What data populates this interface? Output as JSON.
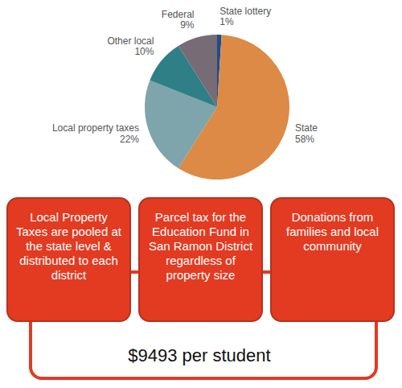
{
  "chart_data": {
    "type": "pie",
    "categories": [
      "State lottery",
      "State",
      "Local property taxes",
      "Other local",
      "Federal"
    ],
    "values": [
      1,
      58,
      22,
      10,
      9
    ],
    "value_labels": [
      "1%",
      "58%",
      "22%",
      "10%",
      "9%"
    ],
    "colors": [
      "#1d4e89",
      "#dc8a46",
      "#7ea5ab",
      "#2f7f86",
      "#776b75"
    ]
  },
  "boxes": [
    "Local Property Taxes are pooled at the state level & distributed to each district",
    "Parcel tax for the Education Fund in San Ramon District regardless of property size",
    "Donations from families and local community"
  ],
  "total": "$9493 per student"
}
